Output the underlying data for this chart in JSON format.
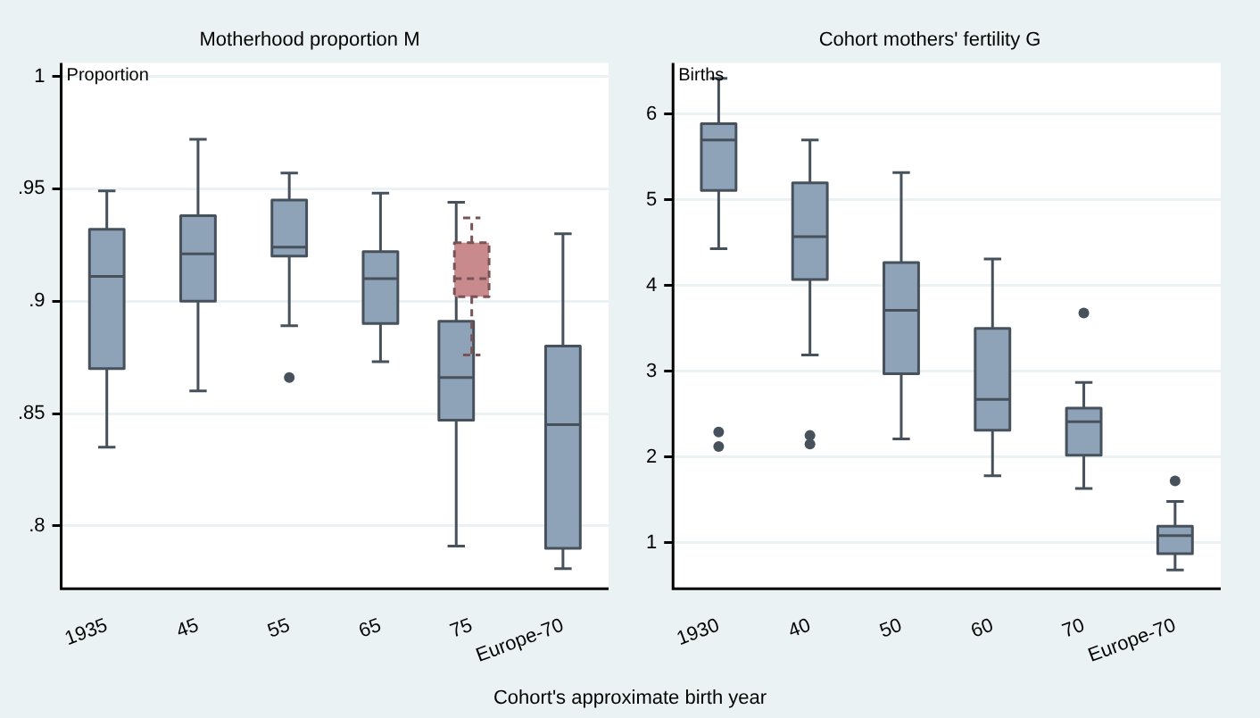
{
  "chart_data": [
    {
      "type": "box",
      "title": "Motherhood proportion M",
      "ylabel": "Proportion",
      "xlabel": "Cohort's approximate birth year",
      "categories": [
        "1935",
        "45",
        "55",
        "65",
        "75",
        "Europe-70"
      ],
      "ylim": [
        0.772,
        1.006
      ],
      "yticks": [
        {
          "value": 0.8,
          "label": ".8"
        },
        {
          "value": 0.85,
          "label": ".85"
        },
        {
          "value": 0.9,
          "label": ".9"
        },
        {
          "value": 0.95,
          "label": ".95"
        },
        1
      ],
      "grid": "y",
      "legend": false,
      "series": [
        {
          "color": "#8ea2b8",
          "line_style": "solid",
          "boxes": [
            {
              "low": 0.835,
              "q1": 0.87,
              "median": 0.911,
              "q3": 0.932,
              "high": 0.949
            },
            {
              "low": 0.86,
              "q1": 0.9,
              "median": 0.921,
              "q3": 0.938,
              "high": 0.972
            },
            {
              "low": 0.889,
              "q1": 0.92,
              "median": 0.924,
              "q3": 0.945,
              "high": 0.957,
              "outliers": [
                0.866
              ]
            },
            {
              "low": 0.873,
              "q1": 0.89,
              "median": 0.91,
              "q3": 0.922,
              "high": 0.948
            },
            {
              "low": 0.791,
              "q1": 0.847,
              "median": 0.866,
              "q3": 0.891,
              "high": 0.944
            },
            {
              "low": 0.781,
              "q1": 0.79,
              "median": 0.845,
              "q3": 0.88,
              "high": 0.93
            }
          ]
        },
        {
          "color": "#c98a8e",
          "line_style": "dashed",
          "boxes": [
            null,
            null,
            null,
            null,
            {
              "low": 0.876,
              "q1": 0.902,
              "median": 0.91,
              "q3": 0.926,
              "high": 0.937
            },
            null
          ]
        }
      ]
    },
    {
      "type": "box",
      "title": "Cohort mothers' fertility G",
      "ylabel": "Births",
      "categories": [
        "1930",
        "40",
        "50",
        "60",
        "70",
        "Europe-70"
      ],
      "ylim": [
        0.46,
        6.6
      ],
      "yticks": [
        1,
        2,
        3,
        4,
        5,
        6
      ],
      "grid": "y",
      "legend": false,
      "series": [
        {
          "color": "#8ea2b8",
          "line_style": "solid",
          "boxes": [
            {
              "low": 4.43,
              "q1": 5.11,
              "median": 5.7,
              "q3": 5.89,
              "high": 6.42,
              "outliers": [
                2.29,
                2.12
              ]
            },
            {
              "low": 3.19,
              "q1": 4.07,
              "median": 4.57,
              "q3": 5.2,
              "high": 5.7,
              "outliers": [
                2.25,
                2.15
              ]
            },
            {
              "low": 2.21,
              "q1": 2.97,
              "median": 3.71,
              "q3": 4.27,
              "high": 5.32
            },
            {
              "low": 1.78,
              "q1": 2.31,
              "median": 2.67,
              "q3": 3.5,
              "high": 4.31
            },
            {
              "low": 1.63,
              "q1": 2.02,
              "median": 2.41,
              "q3": 2.57,
              "high": 2.87,
              "outliers": [
                3.68
              ]
            },
            {
              "low": 0.68,
              "q1": 0.87,
              "median": 1.08,
              "q3": 1.19,
              "high": 1.48,
              "outliers": [
                1.72
              ]
            }
          ]
        }
      ]
    }
  ]
}
